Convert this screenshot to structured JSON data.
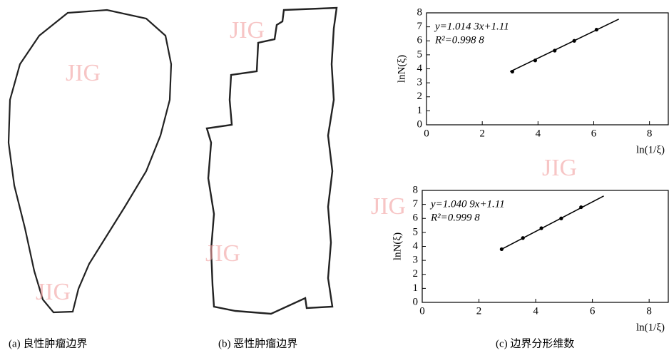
{
  "watermark": "JIG",
  "panels": [
    {
      "caption": "(a) 良性肿瘤边界"
    },
    {
      "caption": "(b) 恶性肿瘤边界"
    },
    {
      "caption": "(c) 边界分形维数"
    }
  ],
  "chart_data": [
    {
      "type": "scatter",
      "x_label": "ln(1/ξ)",
      "y_label": "lnN(ξ)",
      "annotations": [
        "y=1.014 3x+1.11",
        "R²=0.998 8"
      ],
      "x": [
        3.08,
        3.9,
        4.6,
        5.3,
        6.1
      ],
      "values": [
        3.8,
        4.6,
        5.3,
        6.0,
        6.8
      ],
      "color": "#000000",
      "fit_line": {
        "x": [
          3.0,
          6.9
        ],
        "values": [
          3.8,
          7.55
        ]
      },
      "xlim": [
        0,
        8.7
      ],
      "ylim": [
        0,
        8
      ],
      "xticks": [
        0,
        2,
        4,
        6,
        8
      ],
      "yticks": [
        0,
        1,
        2,
        3,
        4,
        5,
        6,
        7,
        8
      ]
    },
    {
      "type": "scatter",
      "x_label": "ln(1/ξ)",
      "y_label": "lnN(ξ)",
      "annotations": [
        "y=1.040 9x+1.11",
        "R²=0.999 8"
      ],
      "x": [
        2.8,
        3.55,
        4.2,
        4.9,
        5.6
      ],
      "values": [
        3.8,
        4.6,
        5.3,
        6.0,
        6.8
      ],
      "color": "#000000",
      "fit_line": {
        "x": [
          2.8,
          6.4
        ],
        "values": [
          3.8,
          7.6
        ]
      },
      "xlim": [
        0,
        8.7
      ],
      "ylim": [
        0,
        8
      ],
      "xticks": [
        0,
        2,
        4,
        6,
        8
      ],
      "yticks": [
        0,
        1,
        2,
        3,
        4,
        5,
        6,
        7,
        8
      ]
    }
  ]
}
